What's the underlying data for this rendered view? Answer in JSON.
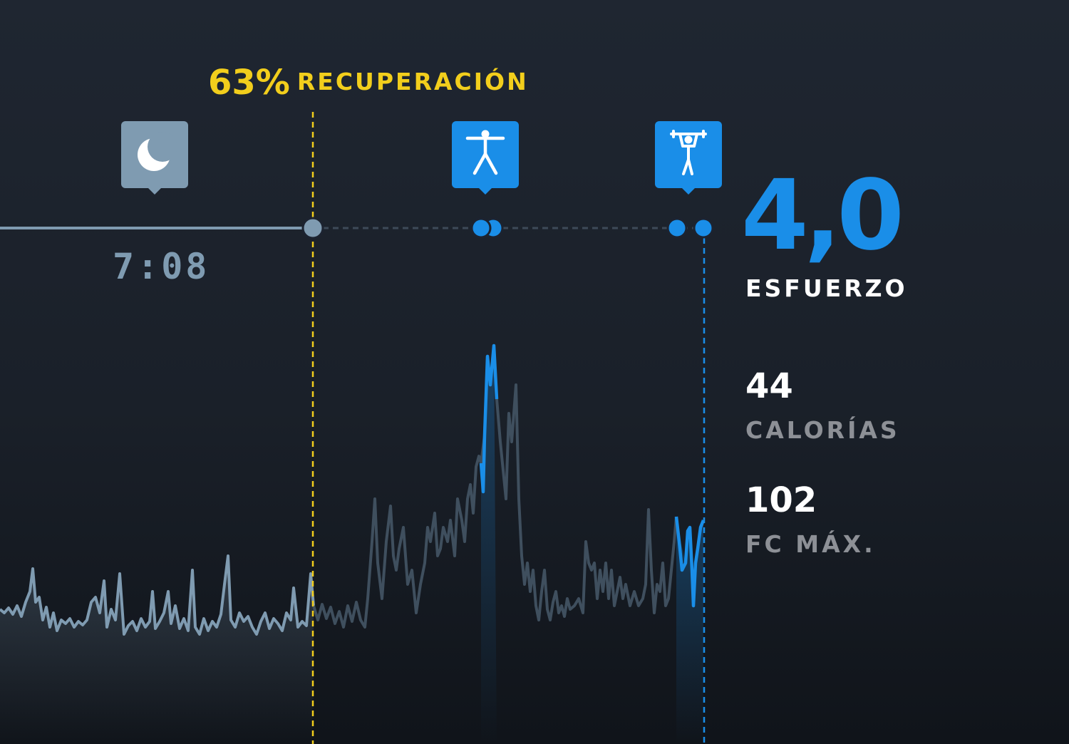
{
  "recovery": {
    "percent": "63%",
    "label": "RECUPERACIÓN",
    "color": "#f2ce1c"
  },
  "sleep": {
    "duration": "7:08",
    "icon": "moon-icon",
    "color": "#7f9bb1"
  },
  "activities": [
    {
      "name": "actividad-1",
      "icon": "jumping-jack-icon",
      "color": "#1a8ee8"
    },
    {
      "name": "actividad-2",
      "icon": "pull-up-icon",
      "color": "#1a8ee8"
    }
  ],
  "strain": {
    "value": "4,0",
    "label": "ESFUERZO",
    "color": "#1a8ee8"
  },
  "calories": {
    "value": "44",
    "label": "CALORÍAS"
  },
  "max_hr": {
    "value": "102",
    "label": "FC MÁX."
  }
}
